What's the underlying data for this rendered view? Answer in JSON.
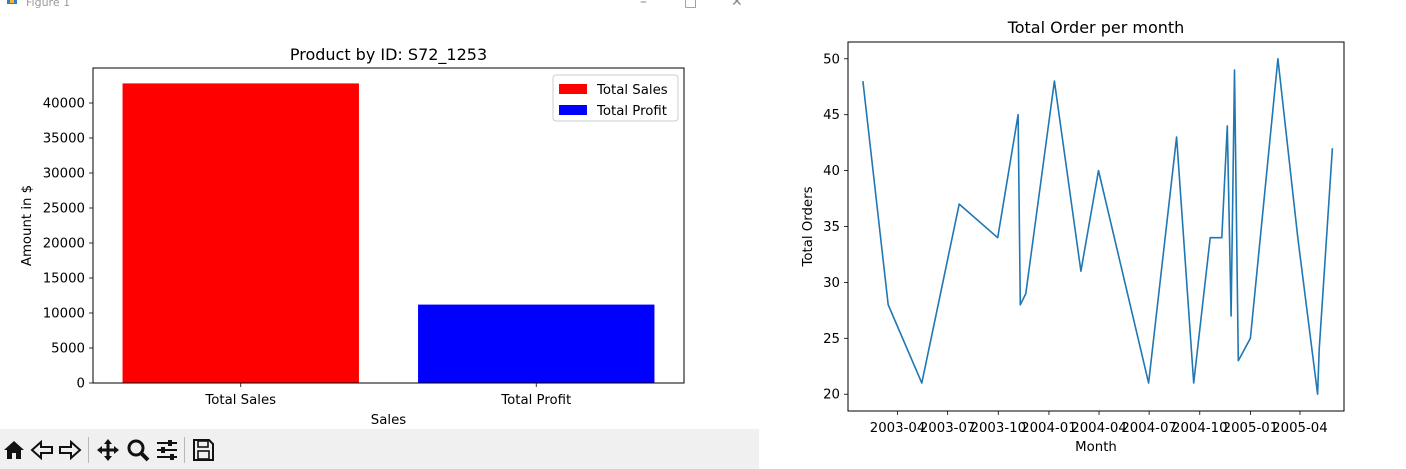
{
  "window": {
    "title": "Figure 1",
    "minimize_glyph": "–",
    "maximize_glyph": "□",
    "close_glyph": "✕"
  },
  "toolbar": {
    "buttons": [
      "home-icon",
      "back-arrow-icon",
      "forward-arrow-icon",
      "pan-icon",
      "zoom-icon",
      "configure-subplots-icon",
      "save-icon"
    ]
  },
  "chart_data": [
    {
      "type": "bar",
      "title": "Product by ID: S72_1253",
      "xlabel": "Sales",
      "ylabel": "Amount in $",
      "categories": [
        "Total Sales",
        "Total Profit"
      ],
      "values": [
        42800,
        11200
      ],
      "colors": [
        "#ff0000",
        "#0000ff"
      ],
      "ylim": [
        0,
        45000
      ],
      "yticks": [
        0,
        5000,
        10000,
        15000,
        20000,
        25000,
        30000,
        35000,
        40000
      ],
      "legend": {
        "placement": "top-right",
        "entries": [
          {
            "label": "Total Sales",
            "color": "#ff0000"
          },
          {
            "label": "Total Profit",
            "color": "#0000ff"
          }
        ]
      },
      "grid": false
    },
    {
      "type": "line",
      "title": "Total Order per month",
      "xlabel": "Month",
      "ylabel": "Total Orders",
      "series_color": "#1f77b4",
      "x": [
        "2003-01-28",
        "2003-03-15",
        "2003-05-15",
        "2003-07-22",
        "2003-09-30",
        "2003-11-06",
        "2003-11-10",
        "2003-11-20",
        "2004-01-11",
        "2004-02-28",
        "2004-03-31",
        "2004-06-30",
        "2004-08-20",
        "2004-09-20",
        "2004-10-20",
        "2004-11-10",
        "2004-11-20",
        "2004-11-27",
        "2004-12-03",
        "2004-12-10",
        "2005-01-01",
        "2005-02-20",
        "2005-03-28",
        "2005-05-03",
        "2005-05-06",
        "2005-05-30"
      ],
      "y": [
        48,
        28,
        21,
        37,
        34,
        45,
        28,
        29,
        48,
        31,
        40,
        21,
        43,
        21,
        34,
        34,
        44,
        27,
        49,
        23,
        25,
        50,
        34,
        20,
        24,
        42
      ],
      "xticks": [
        "2003-04",
        "2003-07",
        "2003-10",
        "2004-01",
        "2004-04",
        "2004-07",
        "2004-10",
        "2005-01",
        "2005-04"
      ],
      "yticks": [
        20,
        25,
        30,
        35,
        40,
        45,
        50
      ],
      "ylim": [
        18.5,
        51.5
      ],
      "xlim": [
        "2003-01-01",
        "2005-06-20"
      ],
      "grid": false
    }
  ]
}
